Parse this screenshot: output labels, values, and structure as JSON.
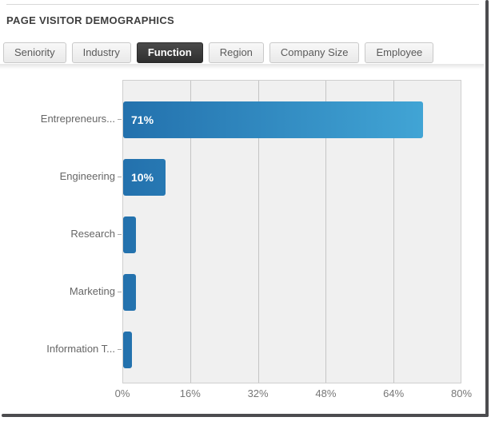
{
  "header": {
    "title": "PAGE VISITOR DEMOGRAPHICS"
  },
  "tabs": [
    {
      "label": "Seniority",
      "active": false
    },
    {
      "label": "Industry",
      "active": false
    },
    {
      "label": "Function",
      "active": true
    },
    {
      "label": "Region",
      "active": false
    },
    {
      "label": "Company Size",
      "active": false
    },
    {
      "label": "Employee",
      "active": false
    }
  ],
  "chart_data": {
    "type": "bar",
    "orientation": "horizontal",
    "categories": [
      "Entrepreneurs...",
      "Engineering",
      "Research",
      "Marketing",
      "Information T..."
    ],
    "values": [
      71,
      10,
      3,
      3,
      2
    ],
    "bar_labels": [
      "71%",
      "10%",
      "",
      "",
      ""
    ],
    "x_ticks": [
      "0%",
      "16%",
      "32%",
      "48%",
      "64%",
      "80%"
    ],
    "xlim": [
      0,
      80
    ],
    "xlabel": "",
    "ylabel": "",
    "grid": true,
    "colors": {
      "bar_gradient_start": "#2371ad",
      "bar_gradient_end": "#45abda",
      "active_tab_bg": "#333333",
      "plot_background": "#f0f0f0"
    }
  }
}
